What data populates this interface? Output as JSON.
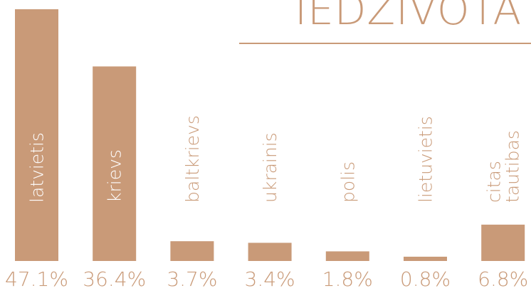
{
  "chart_data": {
    "type": "bar",
    "title": "IEDZIVOTA",
    "categories": [
      "latvietis",
      "krievs",
      "baltkrievs",
      "ukrainis",
      "polis",
      "lietuvietis",
      "citas tautibas"
    ],
    "values": [
      47.1,
      36.4,
      3.7,
      3.4,
      1.8,
      0.8,
      6.8
    ],
    "value_labels": [
      "47.1%",
      "36.4%",
      "3.7%",
      "3.4%",
      "1.8%",
      "0.8%",
      "6.8%"
    ],
    "color": "#c99a78"
  }
}
